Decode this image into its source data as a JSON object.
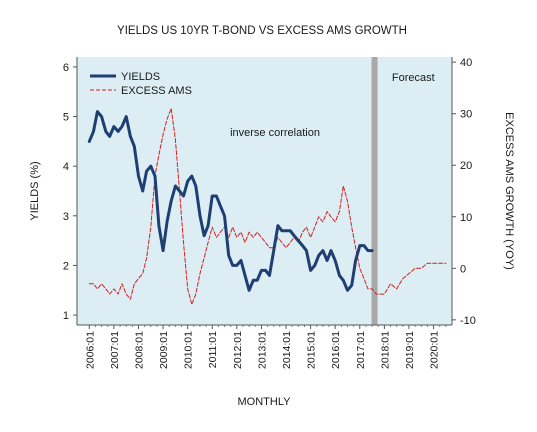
{
  "chart_data": {
    "type": "line",
    "title": "YIELDS US 10YR T-BOND VS EXCESS AMS GROWTH",
    "xlabel": "MONTHLY",
    "ylabel_left": "YIELDS (%)",
    "ylabel_right": "EXCESS AMS GROWTH (YOY)",
    "x_range": [
      2005.5,
      2020.75
    ],
    "ylim_left": [
      0.8,
      6.2
    ],
    "ylim_right": [
      -11,
      41
    ],
    "yticks_left": [
      1,
      2,
      3,
      4,
      5,
      6
    ],
    "yticks_right": [
      -10,
      0,
      10,
      20,
      30,
      40
    ],
    "xtick_values": [
      2006,
      2007,
      2008,
      2009,
      2010,
      2011,
      2012,
      2013,
      2014,
      2015,
      2016,
      2017,
      2018,
      2019,
      2020
    ],
    "xtick_labels": [
      "2006:01",
      "2007:01",
      "2008:01",
      "2009:01",
      "2010:01",
      "2011:01",
      "2012:01",
      "2013:01",
      "2014:01",
      "2015:01",
      "2016:01",
      "2017:01",
      "2018:01",
      "2019:01",
      "2020:01"
    ],
    "forecast_start": 2017.6,
    "forecast_label": "Forecast",
    "annotation": "inverse correlation",
    "legend_position": "top-left",
    "series": [
      {
        "name": "YIELDS",
        "axis": "left",
        "color": "#1f3f73",
        "style": "solid",
        "x": [
          2006.0,
          2006.17,
          2006.33,
          2006.5,
          2006.67,
          2006.83,
          2007.0,
          2007.17,
          2007.33,
          2007.5,
          2007.67,
          2007.83,
          2008.0,
          2008.17,
          2008.33,
          2008.5,
          2008.67,
          2008.83,
          2009.0,
          2009.17,
          2009.33,
          2009.5,
          2009.67,
          2009.83,
          2010.0,
          2010.17,
          2010.33,
          2010.5,
          2010.67,
          2010.83,
          2011.0,
          2011.17,
          2011.33,
          2011.5,
          2011.67,
          2011.83,
          2012.0,
          2012.17,
          2012.33,
          2012.5,
          2012.67,
          2012.83,
          2013.0,
          2013.17,
          2013.33,
          2013.5,
          2013.67,
          2013.83,
          2014.0,
          2014.17,
          2014.33,
          2014.5,
          2014.67,
          2014.83,
          2015.0,
          2015.17,
          2015.33,
          2015.5,
          2015.67,
          2015.83,
          2016.0,
          2016.17,
          2016.33,
          2016.5,
          2016.67,
          2016.83,
          2017.0,
          2017.17,
          2017.33,
          2017.5
        ],
        "values": [
          4.5,
          4.7,
          5.1,
          5.0,
          4.7,
          4.6,
          4.8,
          4.7,
          4.8,
          5.0,
          4.6,
          4.4,
          3.8,
          3.5,
          3.9,
          4.0,
          3.8,
          2.8,
          2.3,
          2.9,
          3.3,
          3.6,
          3.5,
          3.4,
          3.7,
          3.8,
          3.6,
          3.0,
          2.6,
          2.8,
          3.4,
          3.4,
          3.2,
          3.0,
          2.2,
          2.0,
          2.0,
          2.1,
          1.8,
          1.5,
          1.7,
          1.7,
          1.9,
          1.9,
          1.8,
          2.3,
          2.8,
          2.7,
          2.7,
          2.7,
          2.6,
          2.5,
          2.4,
          2.3,
          1.9,
          2.0,
          2.2,
          2.3,
          2.1,
          2.3,
          2.1,
          1.8,
          1.7,
          1.5,
          1.6,
          2.1,
          2.4,
          2.4,
          2.3,
          2.3
        ]
      },
      {
        "name": "EXCESS AMS",
        "axis": "right",
        "color": "#d42020",
        "style": "dashed",
        "x": [
          2006.0,
          2006.17,
          2006.33,
          2006.5,
          2006.67,
          2006.83,
          2007.0,
          2007.17,
          2007.33,
          2007.5,
          2007.67,
          2007.83,
          2008.0,
          2008.17,
          2008.33,
          2008.5,
          2008.67,
          2008.83,
          2009.0,
          2009.17,
          2009.33,
          2009.5,
          2009.67,
          2009.83,
          2010.0,
          2010.17,
          2010.33,
          2010.5,
          2010.67,
          2010.83,
          2011.0,
          2011.17,
          2011.33,
          2011.5,
          2011.67,
          2011.83,
          2012.0,
          2012.17,
          2012.33,
          2012.5,
          2012.67,
          2012.83,
          2013.0,
          2013.17,
          2013.33,
          2013.5,
          2013.67,
          2013.83,
          2014.0,
          2014.17,
          2014.33,
          2014.5,
          2014.67,
          2014.83,
          2015.0,
          2015.17,
          2015.33,
          2015.5,
          2015.67,
          2015.83,
          2016.0,
          2016.17,
          2016.33,
          2016.5,
          2016.67,
          2016.83,
          2017.0,
          2017.17,
          2017.33,
          2017.5,
          2017.67,
          2017.83,
          2018.0,
          2018.25,
          2018.5,
          2018.75,
          2019.0,
          2019.25,
          2019.5,
          2019.75,
          2020.0,
          2020.25,
          2020.5
        ],
        "values": [
          -3,
          -3,
          -4,
          -3,
          -4,
          -5,
          -4,
          -5,
          -3,
          -5,
          -6,
          -3,
          -2,
          -1,
          2,
          8,
          18,
          22,
          26,
          29,
          31,
          25,
          15,
          5,
          -4,
          -7,
          -5,
          -1,
          2,
          5,
          8,
          6,
          7,
          8,
          6,
          8,
          6,
          7,
          5,
          7,
          6,
          7,
          6,
          5,
          4,
          4,
          6,
          5,
          4,
          5,
          6,
          5,
          7,
          8,
          6,
          8,
          10,
          9,
          11,
          10,
          9,
          11,
          16,
          13,
          8,
          4,
          0,
          -2,
          -4,
          -4,
          -5,
          -5,
          -5,
          -3,
          -4,
          -2,
          -1,
          0,
          0,
          1,
          1,
          1,
          1
        ]
      }
    ]
  }
}
